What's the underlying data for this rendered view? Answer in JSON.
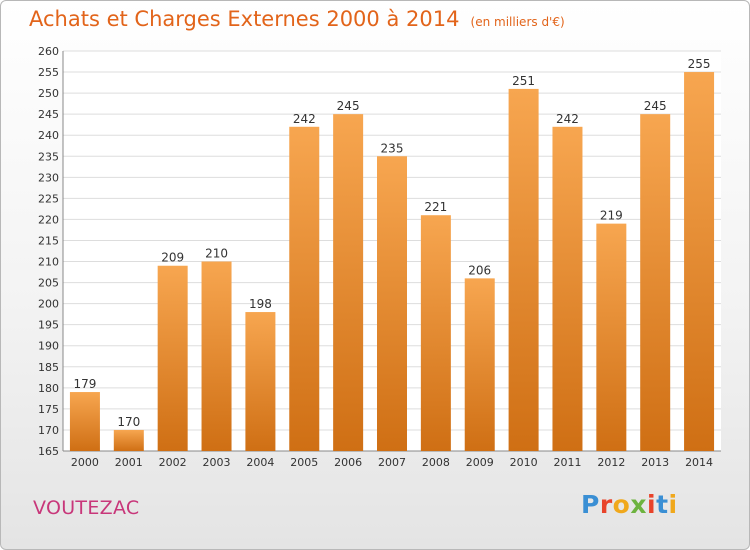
{
  "header": {
    "title": "Achats et Charges Externes 2000 à 2014",
    "unit": "(en milliers d'€)"
  },
  "commune": "VOUTEZAC",
  "logo": {
    "text": "Proxiti",
    "letter_colors": [
      "#3a8fd4",
      "#e8432a",
      "#f0a81c",
      "#6db33f",
      "#e8432a",
      "#3a8fd4",
      "#f0a81c"
    ]
  },
  "colors": {
    "bar_top": "#f7a650",
    "bar_bottom": "#cf6f14",
    "title": "#e2641a",
    "commune": "#c8377a",
    "grid": "#dddddd"
  },
  "chart_data": {
    "type": "bar",
    "categories": [
      "2000",
      "2001",
      "2002",
      "2003",
      "2004",
      "2005",
      "2006",
      "2007",
      "2008",
      "2009",
      "2010",
      "2011",
      "2012",
      "2013",
      "2014"
    ],
    "values": [
      179,
      170,
      209,
      210,
      198,
      242,
      245,
      235,
      221,
      206,
      251,
      242,
      219,
      245,
      255
    ],
    "ylim": [
      165,
      260
    ],
    "yticks": [
      165,
      170,
      175,
      180,
      185,
      190,
      195,
      200,
      205,
      210,
      215,
      220,
      225,
      230,
      235,
      240,
      245,
      250,
      255,
      260
    ],
    "grid": true
  }
}
